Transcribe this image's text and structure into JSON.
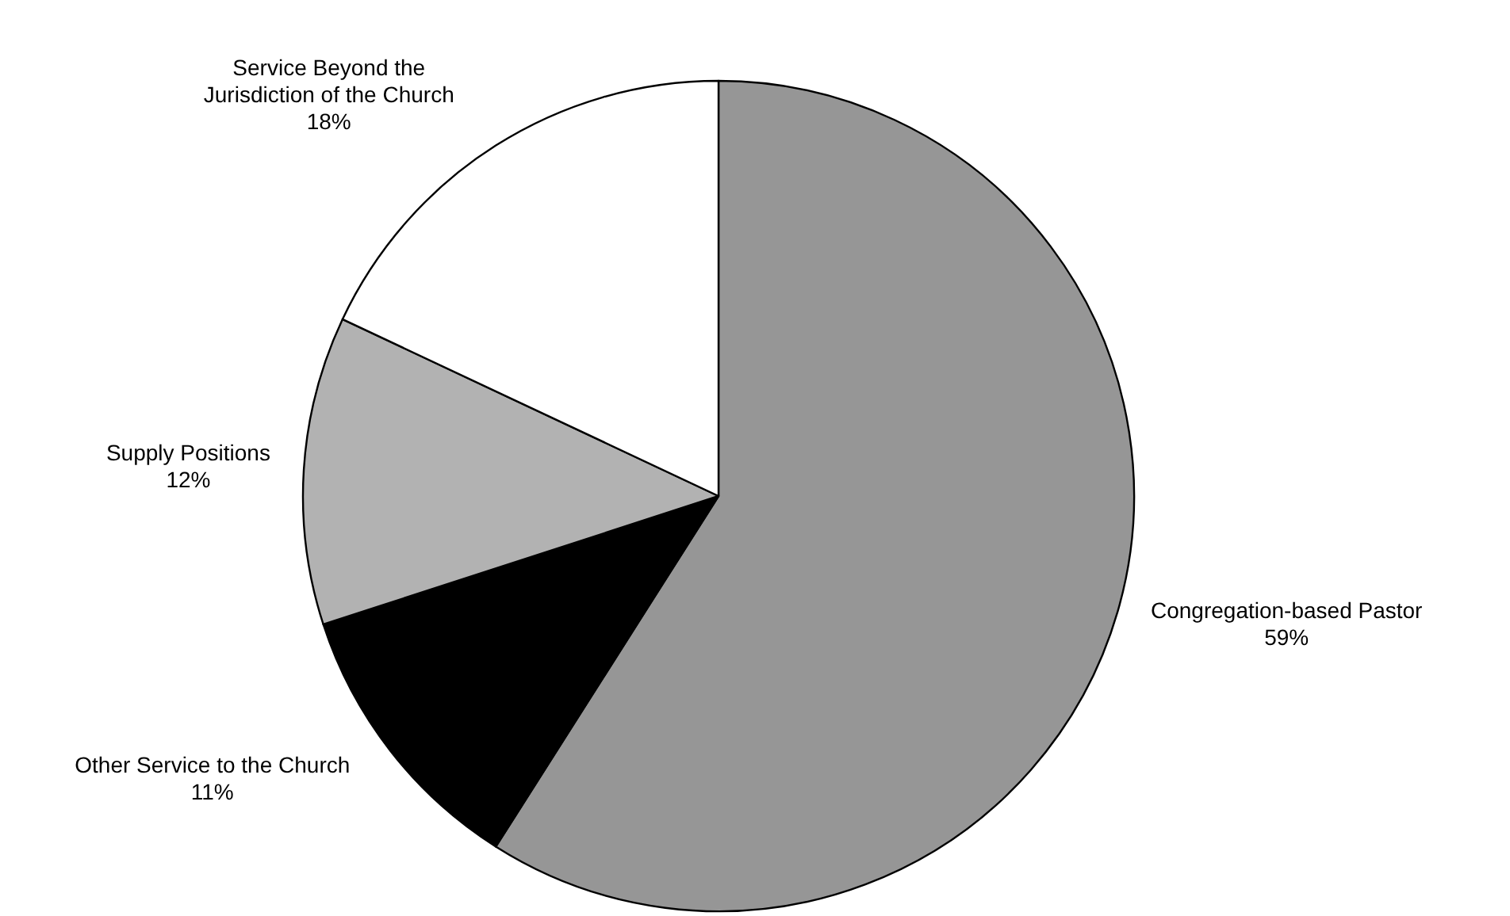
{
  "chart_data": {
    "type": "pie",
    "categories": [
      "Congregation-based Pastor",
      "Other Service to the Church",
      "Supply Positions",
      "Service Beyond the Jurisdiction of the Church"
    ],
    "values": [
      59,
      11,
      12,
      18
    ],
    "colors": [
      "#969696",
      "#000000",
      "#b2b2b2",
      "#ffffff"
    ],
    "value_labels": [
      "59%",
      "11%",
      "12%",
      "18%"
    ]
  }
}
